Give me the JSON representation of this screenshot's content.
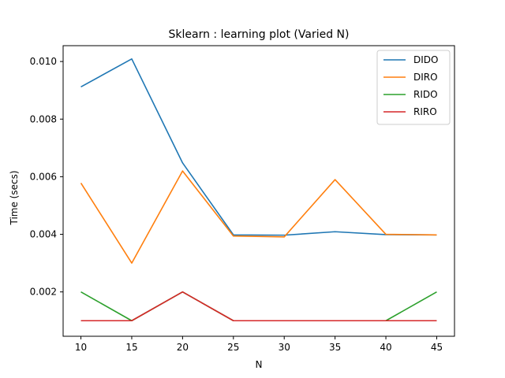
{
  "chart_data": {
    "type": "line",
    "title": "Sklearn : learning plot (Varied N)",
    "xlabel": "N",
    "ylabel": "Time (secs)",
    "x": [
      10,
      15,
      20,
      25,
      30,
      35,
      40,
      45
    ],
    "xticks": [
      "10",
      "15",
      "20",
      "25",
      "30",
      "35",
      "40",
      "45"
    ],
    "yticks": [
      "0.002",
      "0.004",
      "0.006",
      "0.008",
      "0.010"
    ],
    "xlim": [
      8.25,
      46.75
    ],
    "ylim": [
      0.00046,
      0.01055
    ],
    "grid": false,
    "legend_position": "top-right",
    "series": [
      {
        "name": "DIDO",
        "color": "#1f77b4",
        "values": [
          0.00912,
          0.01009,
          0.00648,
          0.00398,
          0.00397,
          0.00409,
          0.00399,
          0.00398
        ]
      },
      {
        "name": "DIRO",
        "color": "#ff7f0e",
        "values": [
          0.00578,
          0.003,
          0.0062,
          0.00394,
          0.00391,
          0.0059,
          0.004,
          0.00398
        ]
      },
      {
        "name": "RIDO",
        "color": "#2ca02c",
        "values": [
          0.002,
          0.001,
          0.002,
          0.001,
          0.001,
          0.001,
          0.001,
          0.002
        ]
      },
      {
        "name": "RIRO",
        "color": "#d62728",
        "values": [
          0.001,
          0.001,
          0.002,
          0.001,
          0.001,
          0.001,
          0.001,
          0.001
        ]
      }
    ]
  }
}
